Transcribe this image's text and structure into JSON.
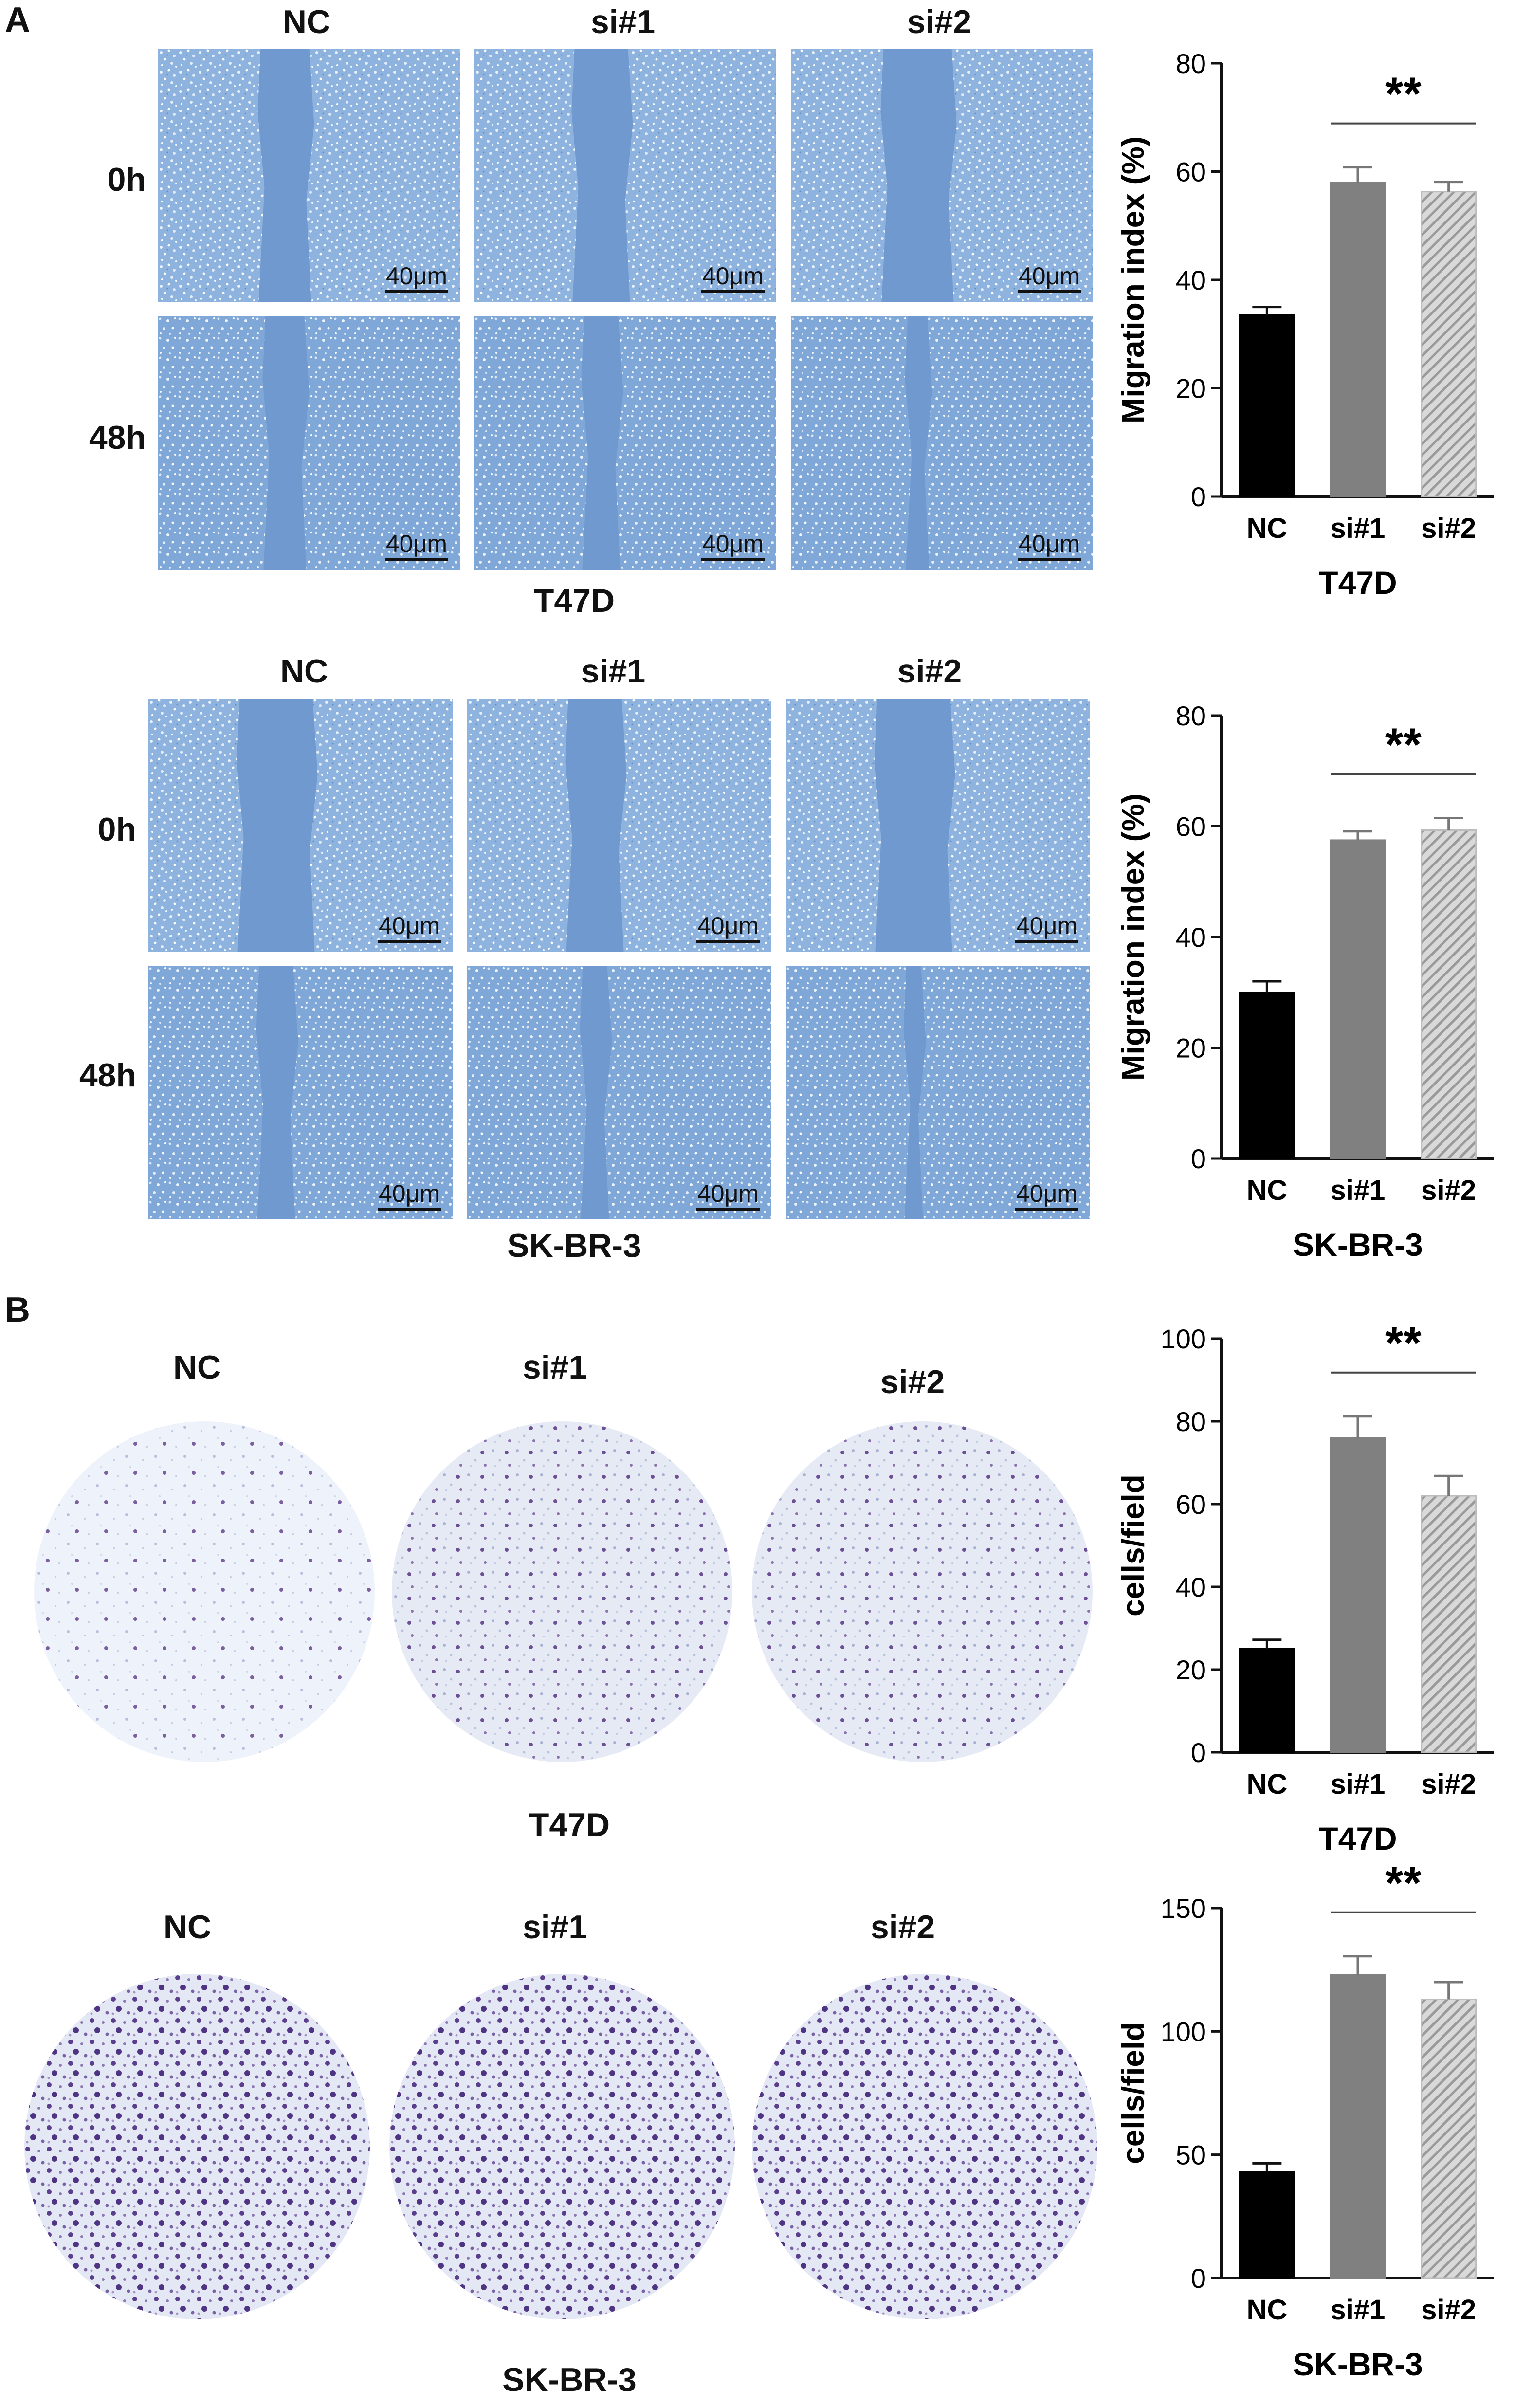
{
  "panels": {
    "a_letter": "A",
    "b_letter": "B"
  },
  "scratch": {
    "columns": [
      "NC",
      "si#1",
      "si#2"
    ],
    "rows": [
      "0h",
      "48h"
    ],
    "scale_bar": "40μm",
    "cells": [
      "T47D",
      "SK-BR-3"
    ]
  },
  "transwell": {
    "columns": [
      "NC",
      "si#1",
      "si#2"
    ],
    "cells": [
      "T47D",
      "SK-BR-3"
    ]
  },
  "chart_data": [
    {
      "type": "bar",
      "categories": [
        "NC",
        "si#1",
        "si#2"
      ],
      "values": [
        33.5,
        58,
        56.3
      ],
      "errors": [
        1.5,
        2.8,
        1.8
      ],
      "ylabel": "Migration index (%)",
      "xlabel": "T47D",
      "ylim": [
        0,
        80
      ],
      "yticks": [
        0,
        20,
        40,
        60,
        80
      ],
      "significance": "**",
      "colors": [
        "#000000",
        "#808080",
        "#d3d3d3"
      ]
    },
    {
      "type": "bar",
      "categories": [
        "NC",
        "si#1",
        "si#2"
      ],
      "values": [
        30,
        57.5,
        59.3
      ],
      "errors": [
        2,
        1.6,
        2.2
      ],
      "ylabel": "Migration index (%)",
      "xlabel": "SK-BR-3",
      "ylim": [
        0,
        80
      ],
      "yticks": [
        0,
        20,
        40,
        60,
        80
      ],
      "significance": "**",
      "colors": [
        "#000000",
        "#808080",
        "#d3d3d3"
      ]
    },
    {
      "type": "bar",
      "categories": [
        "NC",
        "si#1",
        "si#2"
      ],
      "values": [
        25,
        76,
        62
      ],
      "errors": [
        2.2,
        5.2,
        4.8
      ],
      "ylabel": "cells/field",
      "xlabel": "T47D",
      "ylim": [
        0,
        100
      ],
      "yticks": [
        0,
        20,
        40,
        60,
        80,
        100
      ],
      "significance": "**",
      "colors": [
        "#000000",
        "#808080",
        "#d3d3d3"
      ]
    },
    {
      "type": "bar",
      "categories": [
        "NC",
        "si#1",
        "si#2"
      ],
      "values": [
        43,
        123,
        113
      ],
      "errors": [
        3.5,
        7.5,
        7
      ],
      "ylabel": "cells/field",
      "xlabel": "SK-BR-3",
      "ylim": [
        0,
        150
      ],
      "yticks": [
        0,
        50,
        100,
        150
      ],
      "significance": "**",
      "colors": [
        "#000000",
        "#808080",
        "#d3d3d3"
      ]
    }
  ]
}
